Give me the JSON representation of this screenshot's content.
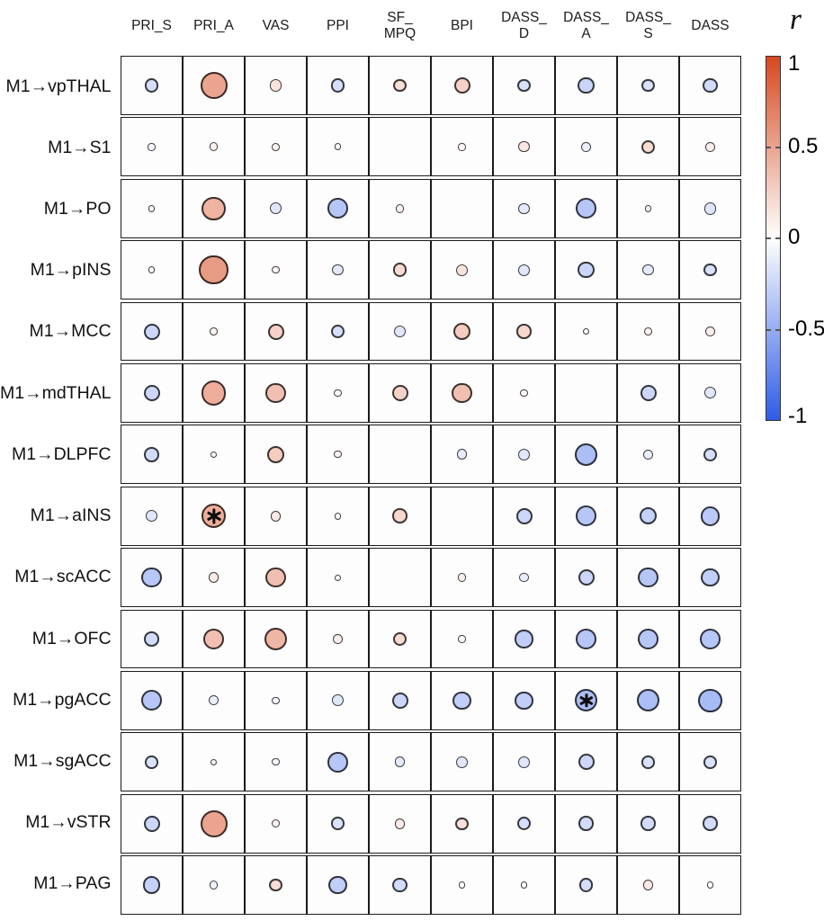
{
  "figure": {
    "description": "Correlation bubble matrix between M1 functional connections and clinical pain/affect measures"
  },
  "colorbar": {
    "label": "r",
    "min": -1,
    "max": 1,
    "ticks": [
      1,
      0.5,
      0,
      -0.5,
      -1
    ],
    "tick_labels": [
      "1",
      "0.5",
      "0",
      "-0.5",
      "-1"
    ],
    "dash_ticks": [
      0.5,
      0,
      -0.5
    ],
    "max_color": "#d6491f",
    "mid_color": "#ffffff",
    "min_color": "#2e5ce6"
  },
  "chart_data": {
    "type": "heatmap",
    "subtype": "correlation-bubble-matrix",
    "encoding": "circle diameter = |r|; circle color = r (red positive, blue negative); empty cell = no circle; black asterisk = significant correlation",
    "columns": [
      "PRI_S",
      "PRI_A",
      "VAS",
      "PPI",
      "SF_MPQ",
      "BPI",
      "DASS_D",
      "DASS_A",
      "DASS_S",
      "DASS"
    ],
    "column_display": [
      [
        "PRI_S"
      ],
      [
        "PRI_A"
      ],
      [
        "VAS"
      ],
      [
        "PPI"
      ],
      [
        "SF_",
        "MPQ"
      ],
      [
        "BPI"
      ],
      [
        "DASS_",
        "D"
      ],
      [
        "DASS_",
        "A"
      ],
      [
        "DASS_",
        "S"
      ],
      [
        "DASS"
      ]
    ],
    "rows": [
      "M1→vpTHAL",
      "M1→S1",
      "M1→PO",
      "M1→pINS",
      "M1→MCC",
      "M1→mdTHAL",
      "M1→DLPFC",
      "M1→aINS",
      "M1→scACC",
      "M1→OFC",
      "M1→pgACC",
      "M1→sgACC",
      "M1→vSTR",
      "M1→PAG"
    ],
    "values": [
      [
        -0.2,
        0.5,
        0.15,
        -0.2,
        0.18,
        0.25,
        -0.18,
        -0.26,
        -0.18,
        -0.22
      ],
      [
        -0.05,
        0.08,
        0.06,
        -0.04,
        null,
        0.05,
        0.13,
        -0.1,
        0.2,
        0.1
      ],
      [
        0.04,
        0.42,
        -0.15,
        -0.35,
        0.08,
        null,
        -0.13,
        -0.35,
        -0.04,
        -0.16
      ],
      [
        -0.04,
        0.55,
        0.05,
        -0.14,
        0.2,
        0.15,
        -0.15,
        -0.26,
        -0.13,
        -0.18
      ],
      [
        -0.25,
        0.06,
        0.25,
        -0.2,
        -0.15,
        0.28,
        0.22,
        0.03,
        0.06,
        0.1
      ],
      [
        -0.25,
        0.45,
        0.35,
        0.05,
        0.25,
        0.35,
        0.05,
        null,
        -0.25,
        -0.15
      ],
      [
        -0.22,
        0.02,
        0.28,
        0.05,
        null,
        -0.12,
        -0.15,
        -0.4,
        -0.1,
        -0.2
      ],
      [
        -0.15,
        0.45,
        0.12,
        0.04,
        0.22,
        null,
        -0.25,
        -0.35,
        -0.28,
        -0.33
      ],
      [
        -0.35,
        0.12,
        0.35,
        0.02,
        null,
        0.08,
        -0.1,
        -0.25,
        -0.35,
        -0.3
      ],
      [
        -0.22,
        0.35,
        0.4,
        0.1,
        0.2,
        0.05,
        -0.3,
        -0.35,
        -0.35,
        -0.35
      ],
      [
        -0.35,
        -0.1,
        -0.05,
        -0.15,
        -0.25,
        -0.3,
        -0.3,
        -0.4,
        -0.4,
        -0.42
      ],
      [
        -0.18,
        -0.03,
        -0.05,
        -0.35,
        -0.12,
        -0.15,
        -0.15,
        -0.25,
        -0.18,
        -0.18
      ],
      [
        -0.25,
        0.5,
        0.07,
        -0.18,
        0.12,
        0.17,
        -0.2,
        -0.22,
        -0.22,
        -0.22
      ],
      [
        -0.28,
        -0.08,
        0.18,
        -0.3,
        -0.22,
        0.03,
        -0.04,
        -0.2,
        0.12,
        0.03
      ]
    ],
    "significant_cells": [
      [
        7,
        1
      ],
      [
        10,
        7
      ]
    ],
    "value_range": [
      -1,
      1
    ]
  }
}
